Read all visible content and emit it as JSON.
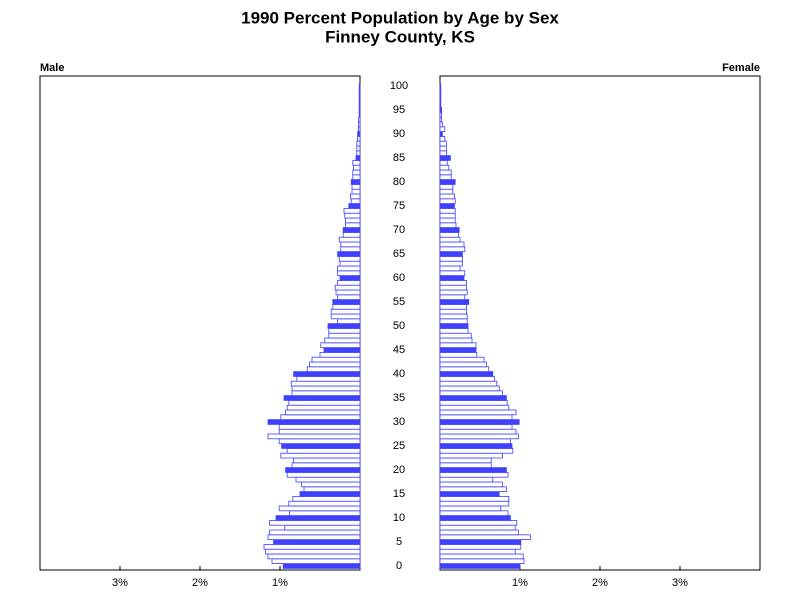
{
  "chart_data": {
    "type": "pyramid",
    "title": "1990 Percent Population by Age by Sex",
    "subtitle": "Finney County, KS",
    "categories": [
      0,
      null,
      null,
      null,
      null,
      5,
      null,
      null,
      null,
      null,
      10,
      null,
      null,
      null,
      null,
      15,
      null,
      null,
      null,
      null,
      20,
      null,
      null,
      null,
      null,
      25,
      null,
      null,
      null,
      null,
      30,
      null,
      null,
      null,
      null,
      35,
      null,
      null,
      null,
      null,
      40,
      null,
      null,
      null,
      null,
      45,
      null,
      null,
      null,
      null,
      50,
      null,
      null,
      null,
      null,
      55,
      null,
      null,
      null,
      null,
      60,
      null,
      null,
      null,
      null,
      65,
      null,
      null,
      null,
      null,
      70,
      null,
      null,
      null,
      null,
      75,
      null,
      null,
      null,
      null,
      80,
      null,
      null,
      null,
      null,
      85,
      null,
      null,
      null,
      null,
      90,
      null,
      null,
      null,
      null,
      95,
      null,
      null,
      null,
      null,
      100
    ],
    "series": [
      {
        "name": "Male",
        "color": "#4040ff",
        "values": [
          0.96,
          1.1,
          1.15,
          1.18,
          1.2,
          1.08,
          1.15,
          1.13,
          0.94,
          1.13,
          1.05,
          0.88,
          1.01,
          0.89,
          0.84,
          0.75,
          0.7,
          0.73,
          0.8,
          0.91,
          0.93,
          0.85,
          0.83,
          0.99,
          0.91,
          0.98,
          1.01,
          1.15,
          1.01,
          1.01,
          1.15,
          0.99,
          0.93,
          0.91,
          0.89,
          0.95,
          0.85,
          0.85,
          0.86,
          0.79,
          0.83,
          0.66,
          0.63,
          0.6,
          0.5,
          0.45,
          0.49,
          0.44,
          0.39,
          0.39,
          0.4,
          0.28,
          0.36,
          0.36,
          0.34,
          0.34,
          0.28,
          0.3,
          0.31,
          0.28,
          0.25,
          0.28,
          0.28,
          0.25,
          0.26,
          0.28,
          0.24,
          0.24,
          0.26,
          0.21,
          0.21,
          0.18,
          0.18,
          0.19,
          0.2,
          0.14,
          0.11,
          0.12,
          0.1,
          0.1,
          0.11,
          0.09,
          0.09,
          0.08,
          0.09,
          0.05,
          0.04,
          0.04,
          0.04,
          0.03,
          0.03,
          0.02,
          0.02,
          0.02,
          0.01,
          0.01,
          0.01,
          0.01,
          0.01,
          0.01,
          0.01
        ]
      },
      {
        "name": "Female",
        "color": "#4040ff",
        "values": [
          1.0,
          1.05,
          1.04,
          0.94,
          1.01,
          1.01,
          1.13,
          0.98,
          0.94,
          0.96,
          0.88,
          0.85,
          0.76,
          0.86,
          0.86,
          0.74,
          0.83,
          0.78,
          0.66,
          0.85,
          0.83,
          0.64,
          0.64,
          0.78,
          0.91,
          0.9,
          0.88,
          0.98,
          0.95,
          0.9,
          0.99,
          0.9,
          0.95,
          0.86,
          0.84,
          0.83,
          0.78,
          0.74,
          0.71,
          0.68,
          0.66,
          0.61,
          0.58,
          0.55,
          0.46,
          0.45,
          0.45,
          0.4,
          0.39,
          0.35,
          0.35,
          0.34,
          0.34,
          0.33,
          0.33,
          0.36,
          0.31,
          0.34,
          0.33,
          0.33,
          0.3,
          0.31,
          0.25,
          0.28,
          0.28,
          0.28,
          0.31,
          0.3,
          0.25,
          0.23,
          0.24,
          0.2,
          0.19,
          0.19,
          0.19,
          0.18,
          0.19,
          0.18,
          0.16,
          0.16,
          0.19,
          0.14,
          0.14,
          0.11,
          0.09,
          0.13,
          0.08,
          0.08,
          0.08,
          0.06,
          0.03,
          0.06,
          0.03,
          0.02,
          0.02,
          0.02,
          0.01,
          0.01,
          0.01,
          0.01,
          0.01
        ]
      }
    ],
    "xlim": [
      0,
      4
    ],
    "xticks": [
      {
        "value": 1,
        "label": "1%"
      },
      {
        "value": 2,
        "label": "2%"
      },
      {
        "value": 3,
        "label": "3%"
      }
    ]
  }
}
